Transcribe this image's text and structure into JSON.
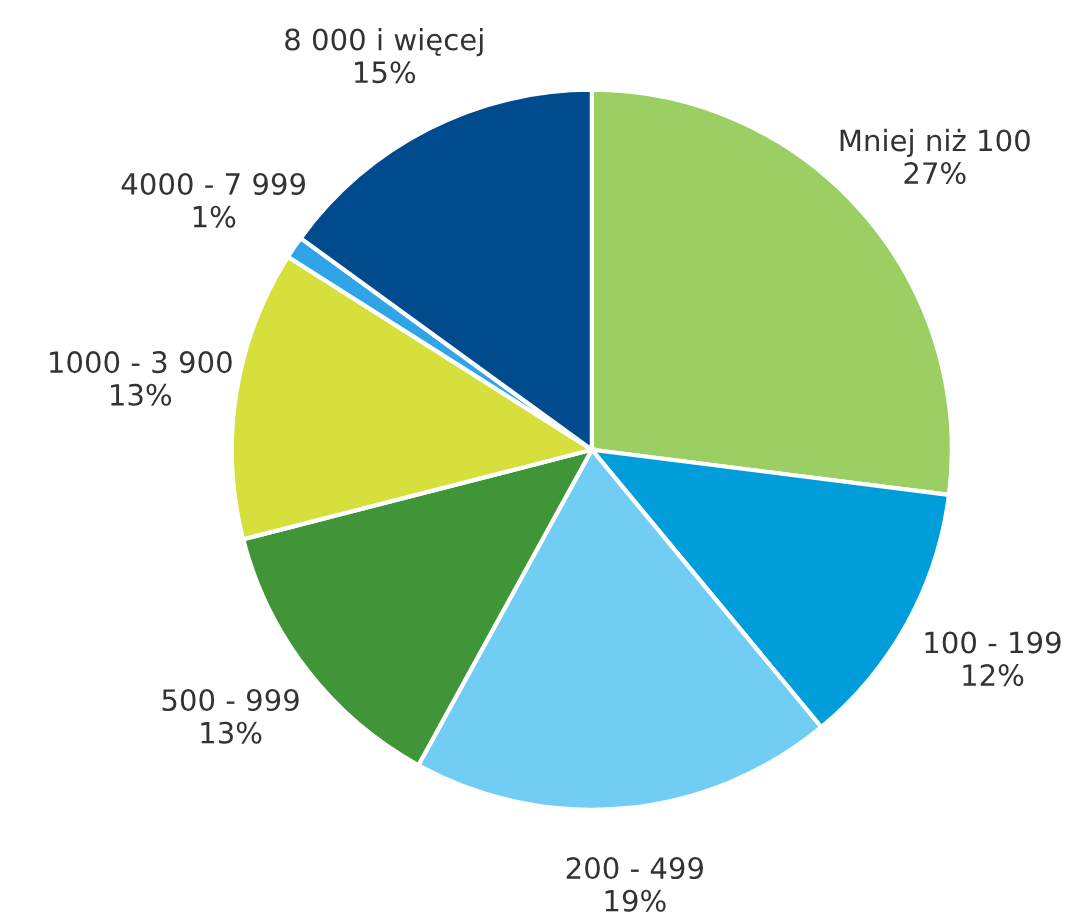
{
  "chart_data": {
    "type": "pie",
    "categories": [
      "Mniej niż 100",
      "100 - 199",
      "200 - 499",
      "500 - 999",
      "1000 - 3 900",
      "4000 - 7 999",
      "8 000 i więcej"
    ],
    "values": [
      27,
      12,
      19,
      13,
      13,
      1,
      15
    ],
    "colors": [
      "#9bcf63",
      "#009ddb",
      "#72cdf4",
      "#3f9537",
      "#d6df3c",
      "#2fa4e7",
      "#004b8d"
    ],
    "value_labels": [
      "27%",
      "12%",
      "19%",
      "13%",
      "13%",
      "1%",
      "15%"
    ],
    "legend": false
  }
}
